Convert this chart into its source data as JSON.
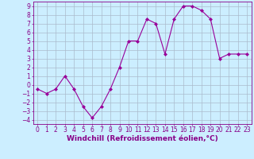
{
  "x": [
    0,
    1,
    2,
    3,
    4,
    5,
    6,
    7,
    8,
    9,
    10,
    11,
    12,
    13,
    14,
    15,
    16,
    17,
    18,
    19,
    20,
    21,
    22,
    23
  ],
  "y": [
    -0.5,
    -1.0,
    -0.5,
    1.0,
    -0.5,
    -2.5,
    -3.8,
    -2.5,
    -0.5,
    2.0,
    5.0,
    5.0,
    7.5,
    7.0,
    3.5,
    7.5,
    9.0,
    9.0,
    8.5,
    7.5,
    3.0,
    3.5,
    3.5,
    3.5
  ],
  "line_color": "#990099",
  "marker": "D",
  "marker_size": 2,
  "bg_color": "#cceeff",
  "grid_color": "#aabbcc",
  "axis_color": "#880088",
  "xlabel": "Windchill (Refroidissement éolien,°C)",
  "xlabel_fontsize": 6.5,
  "tick_fontsize": 5.5,
  "xlim": [
    -0.5,
    23.5
  ],
  "ylim": [
    -4.5,
    9.5
  ],
  "yticks": [
    -4,
    -3,
    -2,
    -1,
    0,
    1,
    2,
    3,
    4,
    5,
    6,
    7,
    8,
    9
  ],
  "xticks": [
    0,
    1,
    2,
    3,
    4,
    5,
    6,
    7,
    8,
    9,
    10,
    11,
    12,
    13,
    14,
    15,
    16,
    17,
    18,
    19,
    20,
    21,
    22,
    23
  ]
}
